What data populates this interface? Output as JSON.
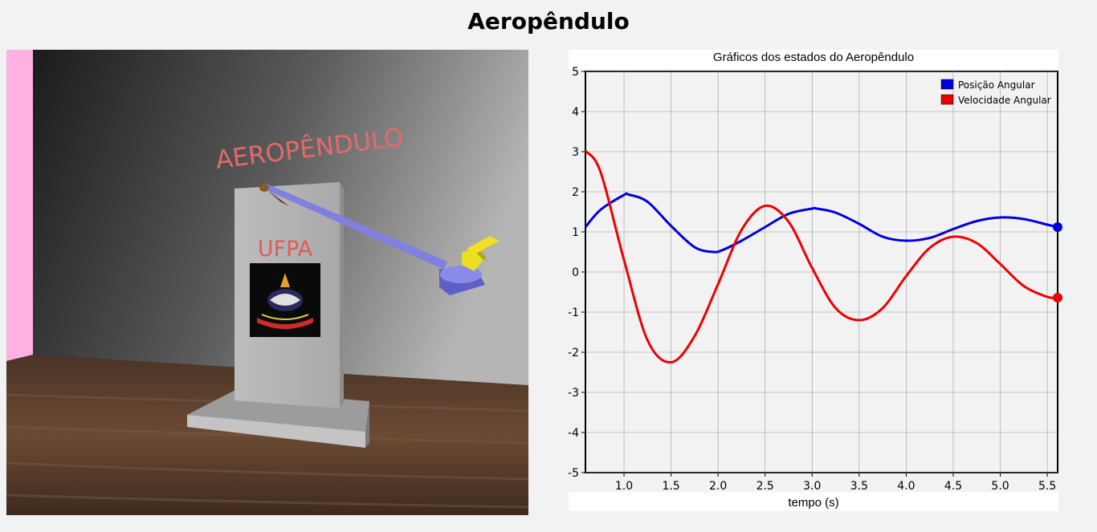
{
  "page": {
    "title": "Aeropêndulo"
  },
  "scene": {
    "wall_text": "AEROPÊNDULO",
    "plate_text": "UFPA",
    "colors": {
      "wall_text": "#e46a6a",
      "plate_text": "#e05a5a",
      "arm": "#8080e0",
      "motor": "#7474dc",
      "propeller": "#f0e020",
      "pillar": "#b0b0b0",
      "side_wall": "#ffb2e2",
      "floor": "#5a3e2c"
    }
  },
  "chart_data": {
    "type": "line",
    "title": "Gráficos dos estados do Aeropêndulo",
    "xlabel": "tempo (s)",
    "ylabel": "",
    "xlim": [
      0.59,
      5.61
    ],
    "ylim": [
      -5,
      5
    ],
    "x_ticks": [
      "1.0",
      "1.5",
      "2.0",
      "2.5",
      "3.0",
      "3.5",
      "4.0",
      "4.5",
      "5.0",
      "5.5"
    ],
    "y_ticks": [
      "5",
      "4",
      "3",
      "2",
      "1",
      "0",
      "-1",
      "-2",
      "-3",
      "-4",
      "-5"
    ],
    "grid": true,
    "legend_position": "top-right",
    "series": [
      {
        "name": "Posição Angular",
        "color": "#0000dd",
        "x": [
          0.59,
          0.75,
          1.0,
          1.05,
          1.25,
          1.5,
          1.75,
          1.95,
          2.05,
          2.25,
          2.5,
          2.75,
          3.0,
          3.05,
          3.25,
          3.5,
          3.75,
          4.0,
          4.25,
          4.5,
          4.75,
          5.0,
          5.25,
          5.5,
          5.61
        ],
        "y": [
          1.12,
          1.55,
          1.92,
          1.93,
          1.75,
          1.15,
          0.62,
          0.5,
          0.55,
          0.78,
          1.12,
          1.45,
          1.58,
          1.58,
          1.48,
          1.2,
          0.88,
          0.78,
          0.85,
          1.07,
          1.27,
          1.36,
          1.32,
          1.18,
          1.12
        ]
      },
      {
        "name": "Velocidade Angular",
        "color": "#ee0000",
        "x": [
          0.59,
          0.75,
          1.0,
          1.25,
          1.5,
          1.75,
          2.0,
          2.25,
          2.5,
          2.75,
          3.0,
          3.25,
          3.5,
          3.75,
          4.0,
          4.25,
          4.5,
          4.75,
          5.0,
          5.25,
          5.5,
          5.61
        ],
        "y": [
          3.02,
          2.5,
          0.3,
          -1.7,
          -2.25,
          -1.6,
          -0.3,
          1.05,
          1.65,
          1.25,
          0.1,
          -0.9,
          -1.2,
          -0.9,
          -0.1,
          0.6,
          0.88,
          0.72,
          0.2,
          -0.35,
          -0.62,
          -0.64
        ]
      }
    ]
  }
}
